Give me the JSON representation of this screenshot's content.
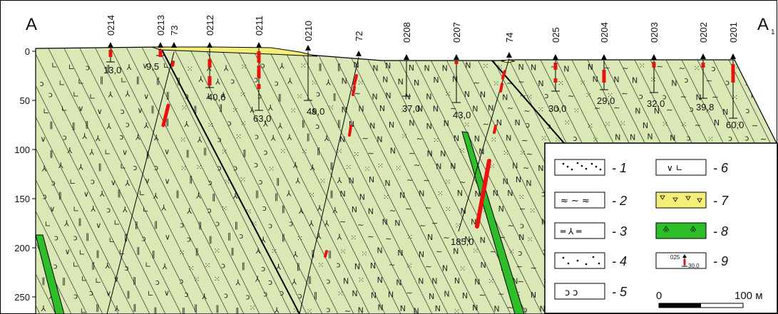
{
  "section": {
    "start_label": "A",
    "end_label": "A",
    "end_subscript": "1",
    "depth_ticks": [
      "0",
      "50",
      "100",
      "150",
      "200",
      "250"
    ]
  },
  "wells": [
    {
      "id": "0214",
      "depth": "13,0"
    },
    {
      "id": "0213",
      "depth": "9,5"
    },
    {
      "id": "73",
      "depth": ""
    },
    {
      "id": "0212",
      "depth": "40,6"
    },
    {
      "id": "0211",
      "depth": "63,0"
    },
    {
      "id": "0210",
      "depth": "49,0"
    },
    {
      "id": "72",
      "depth": ""
    },
    {
      "id": "0208",
      "depth": "37,0"
    },
    {
      "id": "0207",
      "depth": "43,0"
    },
    {
      "id": "74",
      "depth": "185,0"
    },
    {
      "id": "025",
      "depth": "30,0"
    },
    {
      "id": "0204",
      "depth": "29,0"
    },
    {
      "id": "0203",
      "depth": "32,0"
    },
    {
      "id": "0202",
      "depth": "39,8"
    },
    {
      "id": "0201",
      "depth": "60,0"
    }
  ],
  "legend": {
    "items": [
      {
        "num": "- 1",
        "symbol": "dotted-diagonal"
      },
      {
        "num": "- 2",
        "symbol": "wavy-schist"
      },
      {
        "num": "- 3",
        "symbol": "lined-schist"
      },
      {
        "num": "- 4",
        "symbol": "dots"
      },
      {
        "num": "- 5",
        "symbol": "arcs"
      },
      {
        "num": "- 6",
        "symbol": "v-l-volcanic"
      },
      {
        "num": "- 7",
        "symbol": "yellow-cover"
      },
      {
        "num": "- 8",
        "symbol": "green-dyke"
      },
      {
        "num": "- 9",
        "symbol": "borehole"
      }
    ],
    "sample_well_id": "025",
    "sample_well_depth": "30,0",
    "scale_start": "0",
    "scale_end": "100 м"
  },
  "colors": {
    "rock_fill": "#d9e8b4",
    "cover_fill": "#f2ee77",
    "dyke_fill": "#2fbe2a",
    "ore_red": "#e8130f"
  }
}
